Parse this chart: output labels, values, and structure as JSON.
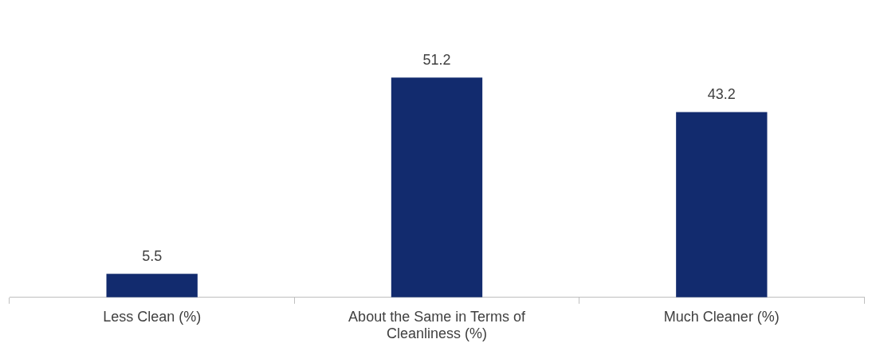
{
  "chart_data": {
    "type": "bar",
    "categories": [
      "Less Clean (%)",
      "About the Same in Terms of Cleanliness (%)",
      "Much Cleaner (%)"
    ],
    "values": [
      5.5,
      51.2,
      43.2
    ],
    "color": "#122b6e",
    "data_labels": true,
    "grid": false,
    "legend": false
  }
}
